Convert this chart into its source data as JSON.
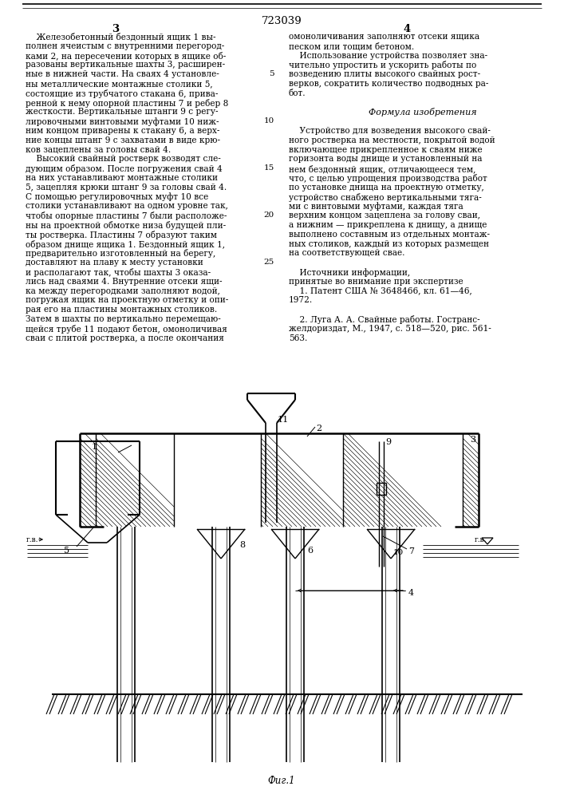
{
  "page_number_center": "723039",
  "page_num_left": "3",
  "page_num_right": "4",
  "background_color": "#ffffff",
  "text_color": "#000000",
  "col_left_text": [
    "    Железобетонный бездонный ящик 1 вы-",
    "полнен ячеистым с внутренними перегород-",
    "ками 2, на пересечении которых в ящике об-",
    "разованы вертикальные шахты 3, расширен-",
    "ные в нижней части. На сваях 4 установле-",
    "ны металлические монтажные столики 5,",
    "состоящие из трубчатого стакана 6, прива-",
    "ренной к нему опорной пластины 7 и ребер 8",
    "жесткости. Вертикальные штанги 9 с регу-",
    "лировочными винтовыми муфтами 10 ниж-",
    "ним концом приварены к стакану 6, а верх-",
    "ние концы штанг 9 с захватами в виде крю-",
    "ков зацеплены за головы свай 4.",
    "    Высокий свайный ростверк возводят сле-",
    "дующим образом. После погружения свай 4",
    "на них устанавливают монтажные столики",
    "5, зацепляя крюки штанг 9 за головы свай 4.",
    "С помощью регулировочных муфт 10 все",
    "столики устанавливают на одном уровне так,",
    "чтобы опорные пластины 7 были расположе-",
    "ны на проектной обмотке низа будущей пли-",
    "ты ростверка. Пластины 7 образуют таким",
    "образом днище ящика 1. Бездонный ящик 1,",
    "предварительно изготовленный на берегу,",
    "доставляют на плаву к месту установки",
    "и располагают так, чтобы шахты 3 оказа-",
    "лись над сваями 4. Внутренние отсеки ящи-",
    "ка между перегородками заполняют водой,",
    "погружая ящик на проектную отметку и опи-",
    "рая его на пластины монтажных столиков.",
    "Затем в шахты по вертикально перемещаю-",
    "щейся трубе 11 подают бетон, омоноличивая",
    "сваи с плитой ростверка, а после окончания"
  ],
  "col_right_text": [
    "омоноличивания заполняют отсеки ящика",
    "песком или тощим бетоном.",
    "    Использование устройства позволяет зна-",
    "чительно упростить и ускорить работы по",
    "возведению плиты высокого свайных рост-",
    "верков, сократить количество подводных ра-",
    "бот.",
    "",
    "   Формула изобретения",
    "",
    "    Устройство для возведения высокого свай-",
    "ного ростверка на местности, покрытой водой",
    "включающее прикрепленное к сваям ниже",
    "горизонта воды днище и установленный на",
    "нем бездонный ящик, отличающееся тем,",
    "что, с целью упрощения производства работ",
    "по установке днища на проектную отметку,",
    "устройство снабжено вертикальными тяга-",
    "ми с винтовыми муфтами, каждая тяга",
    "верхним концом зацеплена за голову сваи,",
    "а нижним — прикреплена к днищу, а днище",
    "выполнено составным из отдельных монтаж-",
    "ных столиков, каждый из которых размещен",
    "на соответствующей свае.",
    "",
    "    Источники информации,",
    "принятые во внимание при экспертизе",
    "    1. Патент США № 3648466, кл. 61—46,",
    "1972.",
    "",
    "    2. Луга А. А. Свайные работы. Гостранс-",
    "желдориздат, М., 1947, с. 518—520, рис. 561-",
    "563."
  ],
  "fig_caption": "Фиг.1",
  "line_numbers": [
    "5",
    "10",
    "15",
    "20",
    "25"
  ]
}
